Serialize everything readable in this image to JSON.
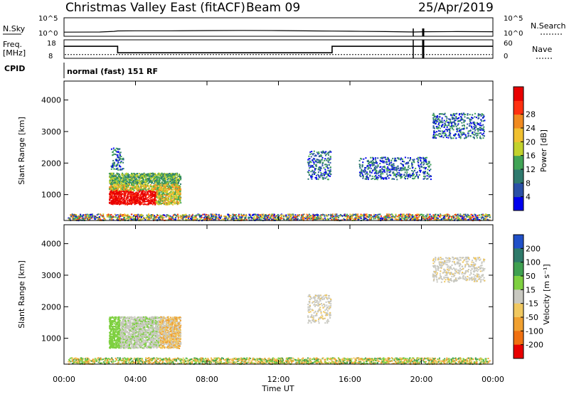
{
  "chart_data": [
    {
      "type": "line",
      "panel": "noise",
      "title": "Christmas Valley East (fitACF)",
      "beam_label": "Beam 09",
      "date": "25/Apr/2019",
      "left_axis": {
        "label": "N.Sky",
        "ticks": [
          "10^5",
          "10^0"
        ]
      },
      "right_axis": {
        "label": "N.Search",
        "ticks": [
          "10^5",
          "10^0"
        ]
      },
      "hours": [
        0,
        2,
        2.8,
        3,
        4,
        6,
        8,
        10,
        12,
        14,
        15,
        16,
        18,
        19.6,
        20.2,
        22,
        24
      ],
      "series": [
        {
          "name": "N.Sky",
          "values": [
            0.8,
            0.9,
            1.3,
            1.6,
            1.7,
            1.7,
            1.8,
            1.9,
            1.8,
            1.6,
            1.5,
            1.4,
            1.2,
            0.9,
            1.1,
            1.2,
            1.1
          ]
        }
      ]
    },
    {
      "type": "line",
      "panel": "frequency",
      "left_axis": {
        "label_top": "Freq.",
        "label_bottom": "[MHz]",
        "ticks": [
          "18",
          "8"
        ]
      },
      "right_axis": {
        "label": "Nave",
        "ticks": [
          "60",
          "0"
        ]
      },
      "cpid_label": "CPID",
      "mode_text": "normal (fast) 151 RF",
      "series": [
        {
          "name": "Freq.",
          "x": [
            0,
            3,
            3,
            15,
            15,
            24
          ],
          "values": [
            14.5,
            14.5,
            11,
            11,
            14.5,
            14.5
          ]
        }
      ],
      "nave_level": 12
    },
    {
      "type": "heatmap",
      "panel": "power",
      "ylabel": "Slant Range [km]",
      "yticks": [
        1000,
        2000,
        3000,
        4000
      ],
      "ylim": [
        180,
        4600
      ],
      "colorbar": {
        "label": "Power [dB]",
        "ticks": [
          "4",
          "8",
          "12",
          "16",
          "20",
          "24",
          "28"
        ],
        "colors": [
          "#0000ee",
          "#2a50a6",
          "#2f7a6e",
          "#41a456",
          "#c2d22c",
          "#f0c030",
          "#f08a20",
          "#ff3010",
          "#e80000"
        ]
      },
      "regions": [
        {
          "t0": 2.5,
          "t1": 6.5,
          "r0": 700,
          "r1": 1700,
          "level": 6,
          "note": "strong echoes"
        },
        {
          "t0": 2.6,
          "t1": 3.3,
          "r0": 1800,
          "r1": 2500,
          "level": 2
        },
        {
          "t0": 13.6,
          "t1": 14.9,
          "r0": 1500,
          "r1": 2400,
          "level": 3
        },
        {
          "t0": 20.6,
          "t1": 23.5,
          "r0": 2800,
          "r1": 3600,
          "level": 3
        },
        {
          "t0": 16.5,
          "t1": 20.5,
          "r0": 1500,
          "r1": 2200,
          "level": 2
        },
        {
          "t0": 0.2,
          "t1": 23.8,
          "r0": 200,
          "r1": 400,
          "level": 4,
          "note": "near-range band"
        }
      ]
    },
    {
      "type": "heatmap",
      "panel": "velocity",
      "ylabel": "Slant Range [km]",
      "yticks": [
        1000,
        2000,
        3000,
        4000
      ],
      "ylim": [
        180,
        4600
      ],
      "colorbar": {
        "label": "Velocity [m s⁻¹]",
        "ticks": [
          "200",
          "100",
          "50",
          "15",
          "-15",
          "-50",
          "-100",
          "-200"
        ],
        "colors": [
          "#2050c8",
          "#2e7a6a",
          "#3fa050",
          "#7ed040",
          "#c8c8c0",
          "#f0c860",
          "#f0a030",
          "#f07010",
          "#e80000"
        ]
      },
      "regions": [
        {
          "t0": 2.5,
          "t1": 6.5,
          "r0": 700,
          "r1": 1700,
          "note": "mostly gray with green and orange"
        },
        {
          "t0": 13.6,
          "t1": 14.9,
          "r0": 1500,
          "r1": 2400,
          "note": "gray"
        },
        {
          "t0": 20.6,
          "t1": 23.5,
          "r0": 2800,
          "r1": 3600,
          "note": "gray"
        },
        {
          "t0": 0.2,
          "t1": 23.8,
          "r0": 200,
          "r1": 400,
          "note": "orange and green"
        }
      ]
    }
  ],
  "x_axis": {
    "label": "Time UT",
    "ticks": [
      "00:00",
      "04:00",
      "08:00",
      "12:00",
      "16:00",
      "20:00",
      "00:00"
    ]
  }
}
